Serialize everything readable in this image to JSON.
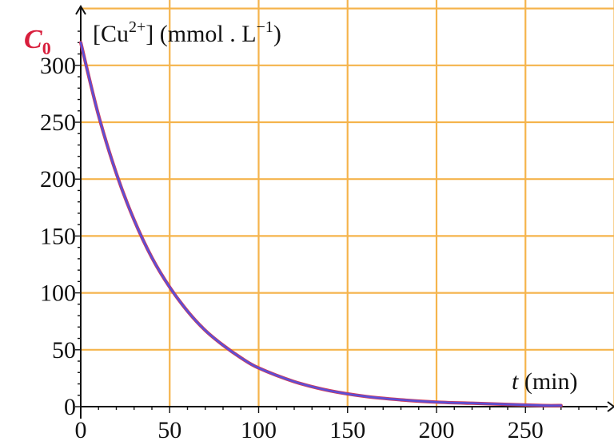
{
  "chart_data": {
    "type": "line",
    "title": "",
    "ylabel": {
      "main": "[Cu",
      "sup": "2+",
      "tail": "] (mmol . L",
      "unit_sup": "−1",
      "end": ")"
    },
    "xlabel": {
      "var": "t",
      "unit": " (min)"
    },
    "y0_label": {
      "var": "C",
      "sub": "0"
    },
    "xlim": [
      0,
      300
    ],
    "ylim": [
      0,
      350
    ],
    "x_ticks": [
      0,
      50,
      100,
      150,
      200,
      250
    ],
    "y_ticks": [
      0,
      50,
      100,
      150,
      200,
      250,
      300
    ],
    "x_tick_labels": [
      "0",
      "50",
      "100",
      "150",
      "200",
      "250"
    ],
    "y_tick_labels": [
      "0",
      "50",
      "100",
      "150",
      "200",
      "250",
      "300"
    ],
    "grid": true,
    "colors": {
      "grid": "#f5b44c",
      "curve": "#5b4fd6",
      "curve_shadow": "#d03a5a",
      "c0_label": "#d81e3c",
      "axis": "#111111"
    },
    "series": [
      {
        "x": [
          0,
          10,
          20,
          30,
          40,
          50,
          60,
          70,
          80,
          90,
          100,
          120,
          140,
          160,
          180,
          200,
          220,
          240,
          260,
          270
        ],
        "values": [
          320,
          256,
          205,
          164,
          131,
          105,
          84,
          67,
          54,
          43,
          34,
          22,
          14,
          9,
          6,
          4,
          3,
          2,
          1,
          1
        ]
      }
    ]
  }
}
